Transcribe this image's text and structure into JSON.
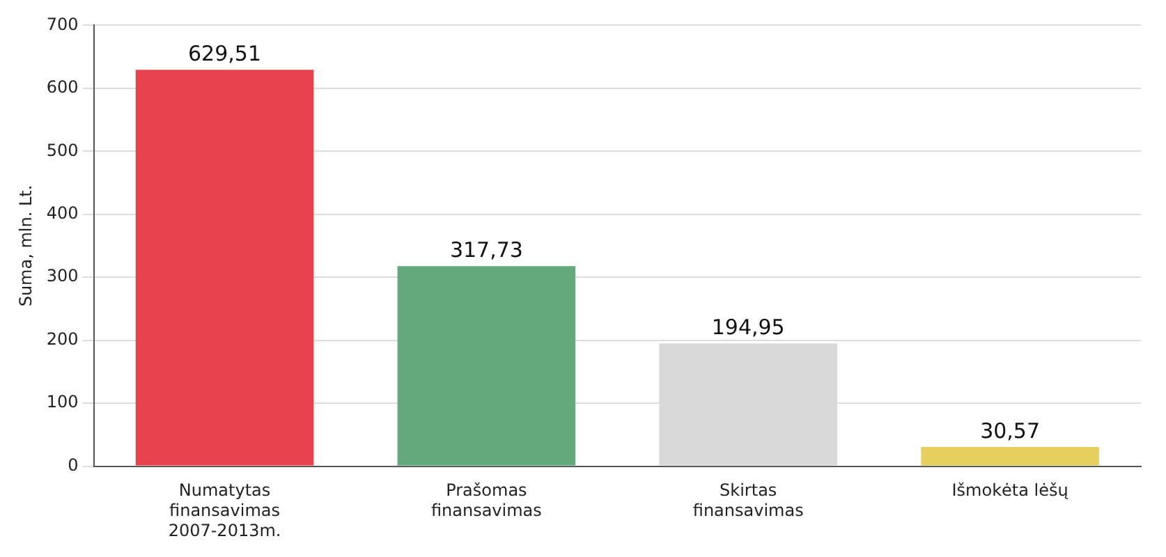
{
  "chart_data": {
    "type": "bar",
    "ylabel": "Suma, mln. Lt.",
    "categories": [
      "Numatytas finansavimas 2007-2013m.",
      "Prašomas finansavimas",
      "Skirtas finansavimas",
      "Išmokėta lėšų"
    ],
    "values": [
      629.51,
      317.73,
      194.95,
      30.57
    ],
    "colors": [
      "#e8424c",
      "#62aa7c",
      "#d9d9d9",
      "#e6cf5e"
    ],
    "value_labels": [
      "629,51",
      "317,73",
      "194,95",
      "30,57"
    ],
    "ylim": [
      0,
      700
    ],
    "yticks": [
      0,
      100,
      200,
      300,
      400,
      500,
      600,
      700
    ],
    "grid": "y"
  }
}
